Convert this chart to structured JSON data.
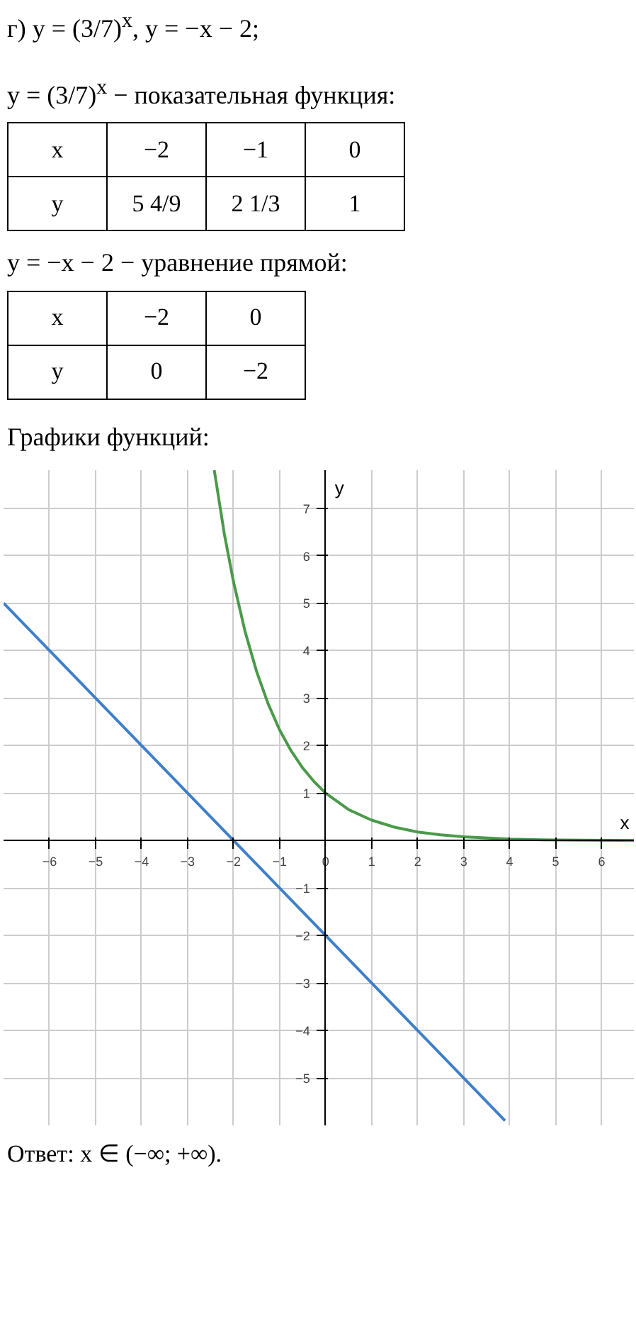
{
  "chart_data": {
    "type": "line",
    "title": "г) y = (3/7)$^{x}$,  y = −x − 2;",
    "xlabel": "x",
    "ylabel": "y",
    "annotations": [
      "y = (3/7)$^{x}$ − показательная функция:",
      "x",
      "−2",
      "−1",
      "0",
      "y",
      "5 4/9",
      "2 1/3",
      "1",
      "y = −x − 2 − уравнение прямой:",
      "x",
      "−2",
      "0",
      "y",
      "0",
      "−2",
      "Графики функций:",
      "Ответ: x ∈ (−∞; +∞)."
    ],
    "series": [
      {
        "color": "#4a9a4a",
        "x": [
          -2.42,
          -2.2,
          -2,
          -1.75,
          -1.5,
          -1.25,
          -1,
          -0.75,
          -0.5,
          -0.25,
          0,
          0.5,
          1,
          1.5,
          2,
          2.5,
          3,
          4,
          5,
          6.7
        ],
        "values": [
          7.8,
          6.45,
          5.44,
          4.4,
          3.56,
          2.88,
          2.33,
          1.89,
          1.53,
          1.24,
          1,
          0.65,
          0.43,
          0.28,
          0.18,
          0.12,
          0.08,
          0.03,
          0.01,
          0.0
        ]
      },
      {
        "color": "#3f7fc9",
        "x": [
          -7,
          3.9
        ],
        "values": [
          5,
          -5.9
        ]
      }
    ],
    "xlim": [
      -7,
      6.7
    ],
    "ylim": [
      -6,
      7.8
    ],
    "xticks": [
      -6,
      -5,
      -4,
      -3,
      -2,
      -1,
      0,
      1,
      2,
      3,
      4,
      5,
      6
    ],
    "yticks": [
      -5,
      -4,
      -3,
      -2,
      -1,
      1,
      2,
      3,
      4,
      5,
      6,
      7
    ],
    "grid": true,
    "line_style": "solid"
  }
}
